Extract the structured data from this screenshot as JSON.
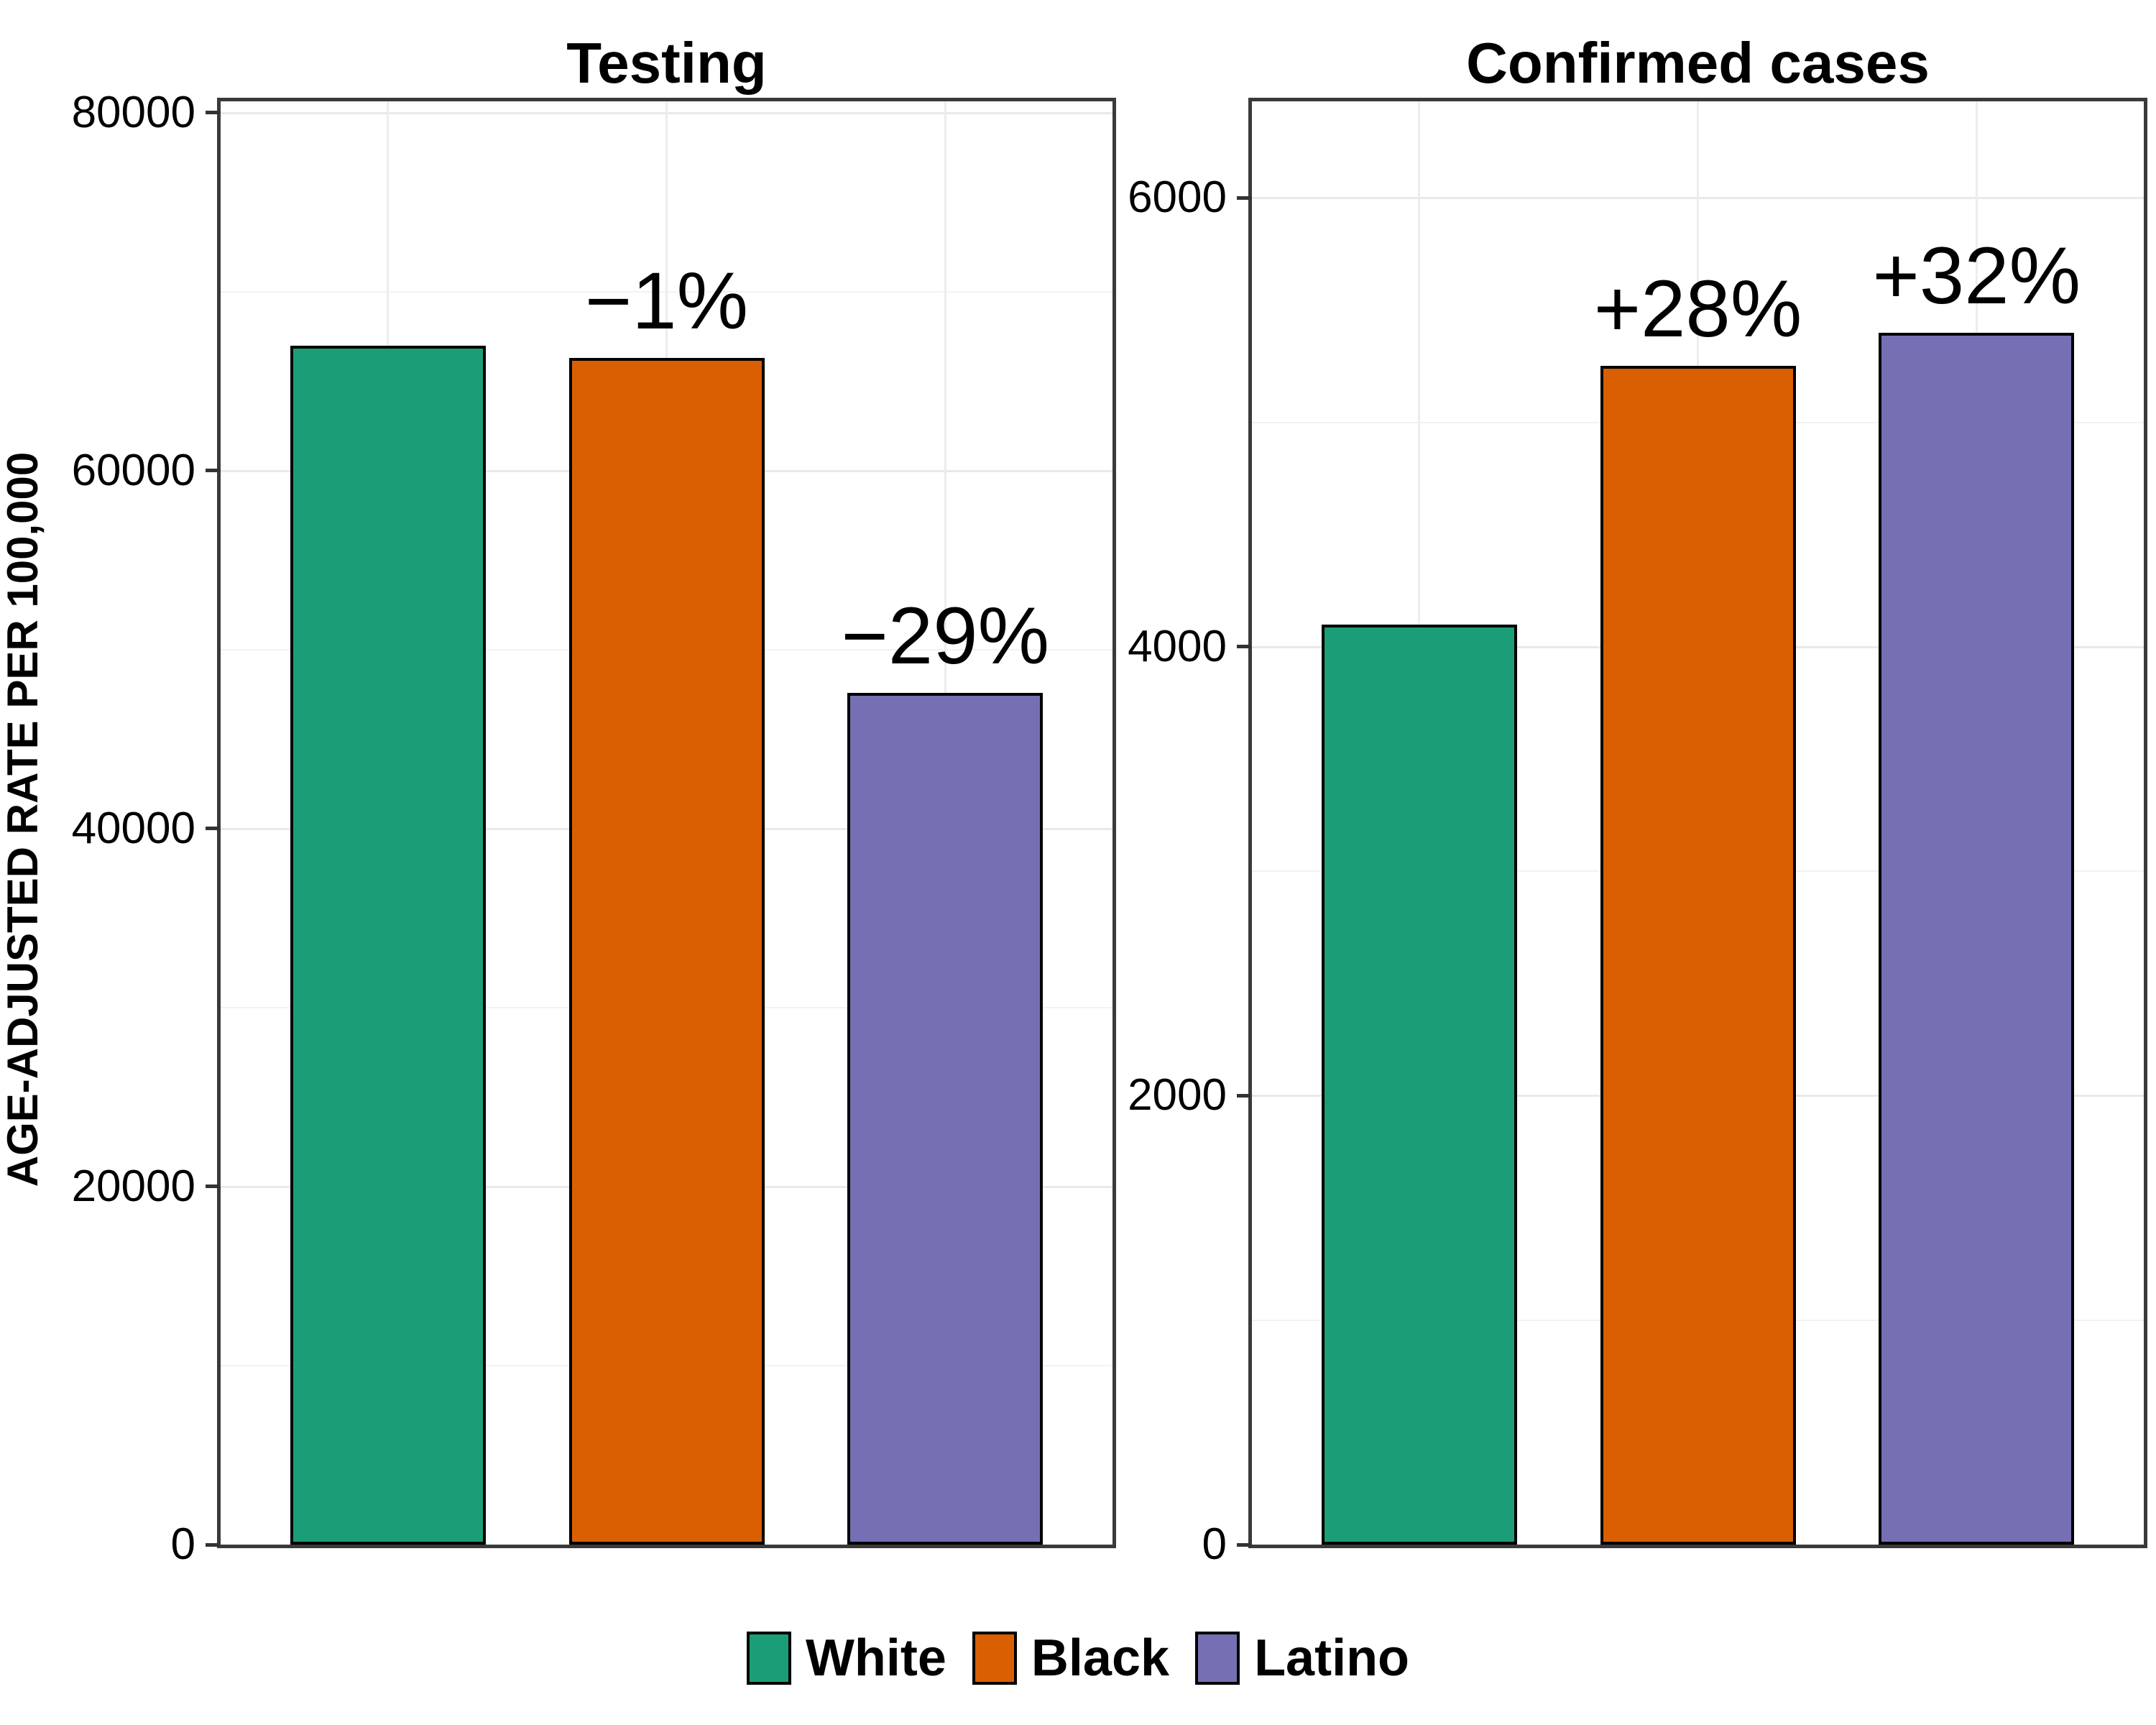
{
  "figure": {
    "y_axis_title": "AGE-ADJUSTED RATE PER 100,000",
    "legend": {
      "position": "bottom",
      "items": [
        {
          "label": "White",
          "color": "#1B9E77"
        },
        {
          "label": "Black",
          "color": "#D95F02"
        },
        {
          "label": "Latino",
          "color": "#7570B3"
        }
      ]
    }
  },
  "chart_data": [
    {
      "type": "bar",
      "title": "Testing",
      "categories": [
        "White",
        "Black",
        "Latino"
      ],
      "values": [
        67000,
        66300,
        47600
      ],
      "bar_labels": [
        "",
        "−1%",
        "−29%"
      ],
      "colors": [
        "#1B9E77",
        "#D95F02",
        "#7570B3"
      ],
      "xlabel": "",
      "ylabel": "AGE-ADJUSTED RATE PER 100,000",
      "ylim": [
        0,
        80640
      ],
      "yticks": [
        0,
        20000,
        40000,
        60000,
        80000
      ],
      "ytick_labels": [
        "0",
        "20000",
        "40000",
        "60000",
        "80000"
      ],
      "yticks_minor": [
        10000,
        30000,
        50000,
        70000
      ],
      "grid": "on",
      "legend_position": "bottom"
    },
    {
      "type": "bar",
      "title": "Confirmed cases",
      "categories": [
        "White",
        "Black",
        "Latino"
      ],
      "values": [
        4100,
        5250,
        5400
      ],
      "bar_labels": [
        "",
        "+28%",
        "+32%"
      ],
      "colors": [
        "#1B9E77",
        "#D95F02",
        "#7570B3"
      ],
      "xlabel": "",
      "ylabel": "",
      "ylim": [
        0,
        6430
      ],
      "yticks": [
        0,
        2000,
        4000,
        6000
      ],
      "ytick_labels": [
        "0",
        "2000",
        "4000",
        "6000"
      ],
      "yticks_minor": [
        1000,
        3000,
        5000
      ],
      "grid": "on",
      "legend_position": "bottom"
    }
  ]
}
